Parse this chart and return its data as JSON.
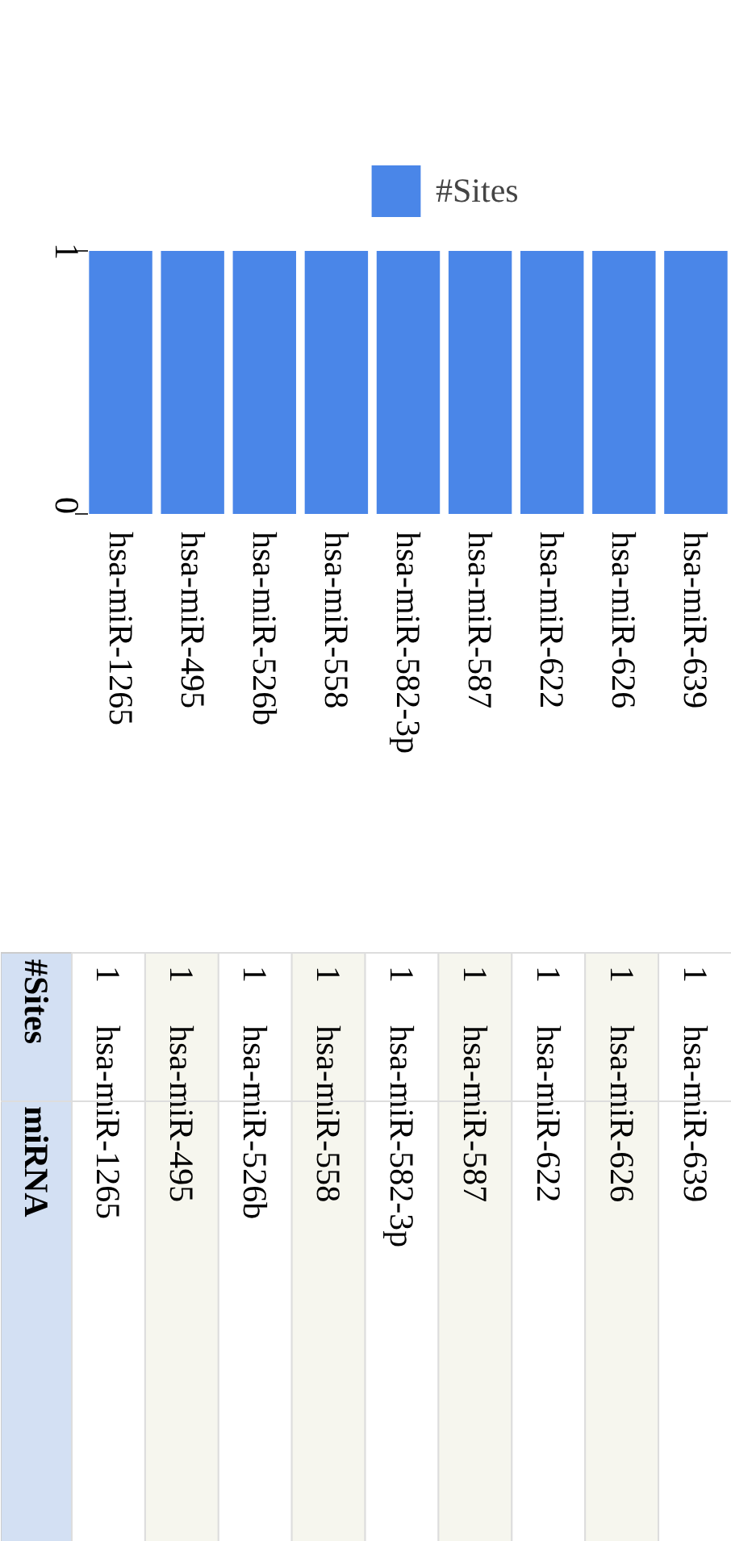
{
  "chart_data": [
    {
      "type": "bar",
      "categories": [
        "hsa-miR-1265",
        "hsa-miR-495",
        "hsa-miR-526b",
        "hsa-miR-558",
        "hsa-miR-582-3p",
        "hsa-miR-587",
        "hsa-miR-622",
        "hsa-miR-626",
        "hsa-miR-639"
      ],
      "series": [
        {
          "name": "#Sites",
          "color": "#4a86e8",
          "values": [
            1,
            1,
            1,
            1,
            1,
            1,
            1,
            1,
            1
          ]
        }
      ],
      "ylim": [
        0,
        1
      ],
      "yticks": [
        0,
        1
      ],
      "legend": "top"
    },
    {
      "type": "other",
      "annotations": [
        "#Sites",
        "miRNA",
        "1",
        "hsa-miR-1265",
        "1",
        "hsa-miR-495",
        "1",
        "hsa-miR-526b",
        "1",
        "hsa-miR-558",
        "1",
        "hsa-miR-582-3p",
        "1",
        "hsa-miR-587",
        "1",
        "hsa-miR-622",
        "1",
        "hsa-miR-626",
        "1",
        "hsa-miR-639"
      ]
    }
  ]
}
